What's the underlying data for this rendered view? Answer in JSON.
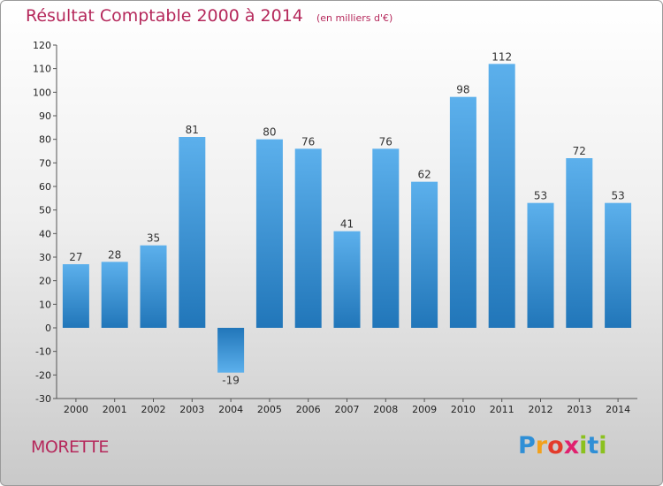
{
  "header": {
    "title": "Résultat Comptable 2000 à 2014",
    "subtitle": "(en milliers d'€)"
  },
  "footer": {
    "town": "MORETTE",
    "brand": "Proxiti"
  },
  "colors": {
    "title": "#b5285b",
    "bar_light": "#5cb0ec",
    "bar_dark": "#2176b9"
  },
  "chart_data": {
    "type": "bar",
    "title": "Résultat Comptable 2000 à 2014",
    "subtitle": "(en milliers d'€)",
    "xlabel": "",
    "ylabel": "",
    "categories": [
      "2000",
      "2001",
      "2002",
      "2003",
      "2004",
      "2005",
      "2006",
      "2007",
      "2008",
      "2009",
      "2010",
      "2011",
      "2012",
      "2013",
      "2014"
    ],
    "values": [
      27,
      28,
      35,
      81,
      -19,
      80,
      76,
      41,
      76,
      62,
      98,
      112,
      53,
      72,
      53
    ],
    "ylim": [
      -30,
      120
    ],
    "yticks": [
      -30,
      -20,
      -10,
      0,
      10,
      20,
      30,
      40,
      50,
      60,
      70,
      80,
      90,
      100,
      110,
      120
    ],
    "grid": false,
    "data_labels": true
  }
}
